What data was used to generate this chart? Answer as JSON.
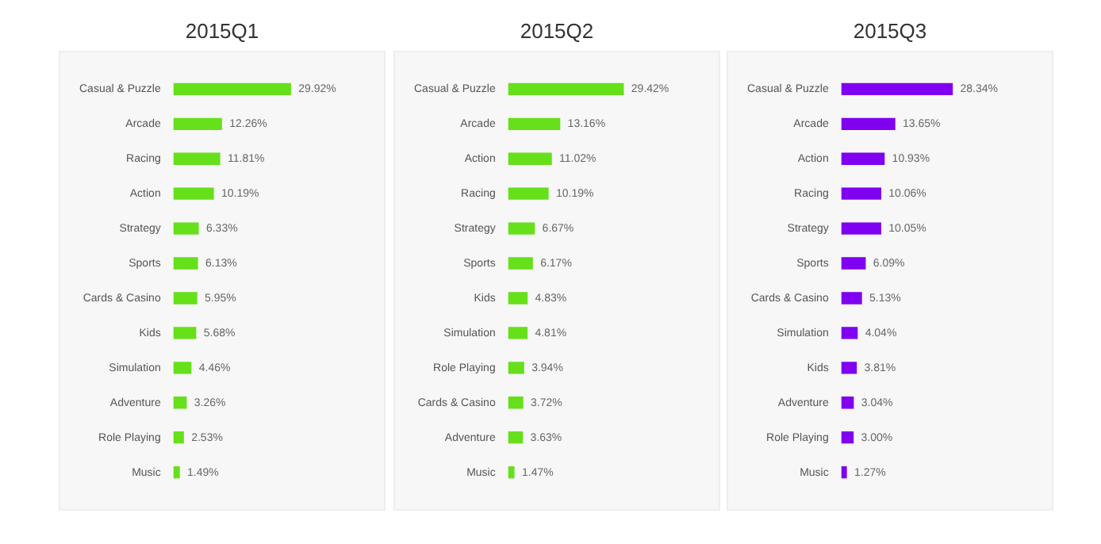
{
  "chart_data": [
    {
      "type": "bar",
      "orientation": "horizontal",
      "title": "2015Q1",
      "categories": [
        "Casual & Puzzle",
        "Arcade",
        "Racing",
        "Action",
        "Strategy",
        "Sports",
        "Cards & Casino",
        "Kids",
        "Simulation",
        "Adventure",
        "Role Playing",
        "Music"
      ],
      "values": [
        29.92,
        12.26,
        11.81,
        10.19,
        6.33,
        6.13,
        5.95,
        5.68,
        4.46,
        3.26,
        2.53,
        1.49
      ],
      "value_labels": [
        "29.92%",
        "12.26%",
        "11.81%",
        "10.19%",
        "6.33%",
        "6.13%",
        "5.95%",
        "5.68%",
        "4.46%",
        "3.26%",
        "2.53%",
        "1.49%"
      ],
      "color": "#66e01a",
      "grid": false,
      "legend": false,
      "tick_labels": "y"
    },
    {
      "type": "bar",
      "orientation": "horizontal",
      "title": "2015Q2",
      "categories": [
        "Casual & Puzzle",
        "Arcade",
        "Action",
        "Racing",
        "Strategy",
        "Sports",
        "Kids",
        "Simulation",
        "Role Playing",
        "Cards & Casino",
        "Adventure",
        "Music"
      ],
      "values": [
        29.42,
        13.16,
        11.02,
        10.19,
        6.67,
        6.17,
        4.83,
        4.81,
        3.94,
        3.72,
        3.63,
        1.47
      ],
      "value_labels": [
        "29.42%",
        "13.16%",
        "11.02%",
        "10.19%",
        "6.67%",
        "6.17%",
        "4.83%",
        "4.81%",
        "3.94%",
        "3.72%",
        "3.63%",
        "1.47%"
      ],
      "color": "#66e01a",
      "grid": false,
      "legend": false,
      "tick_labels": "y"
    },
    {
      "type": "bar",
      "orientation": "horizontal",
      "title": "2015Q3",
      "categories": [
        "Casual & Puzzle",
        "Arcade",
        "Action",
        "Racing",
        "Strategy",
        "Sports",
        "Cards & Casino",
        "Simulation",
        "Kids",
        "Adventure",
        "Role Playing",
        "Music"
      ],
      "values": [
        28.34,
        13.65,
        10.93,
        10.06,
        10.05,
        6.09,
        5.13,
        4.04,
        3.81,
        3.04,
        3.0,
        1.27
      ],
      "value_labels": [
        "28.34%",
        "13.65%",
        "10.93%",
        "10.06%",
        "10.05%",
        "6.09%",
        "5.13%",
        "4.04%",
        "3.81%",
        "3.04%",
        "3.00%",
        "1.27%"
      ],
      "color": "#8000f0",
      "grid": false,
      "legend": false,
      "tick_labels": "y"
    }
  ]
}
